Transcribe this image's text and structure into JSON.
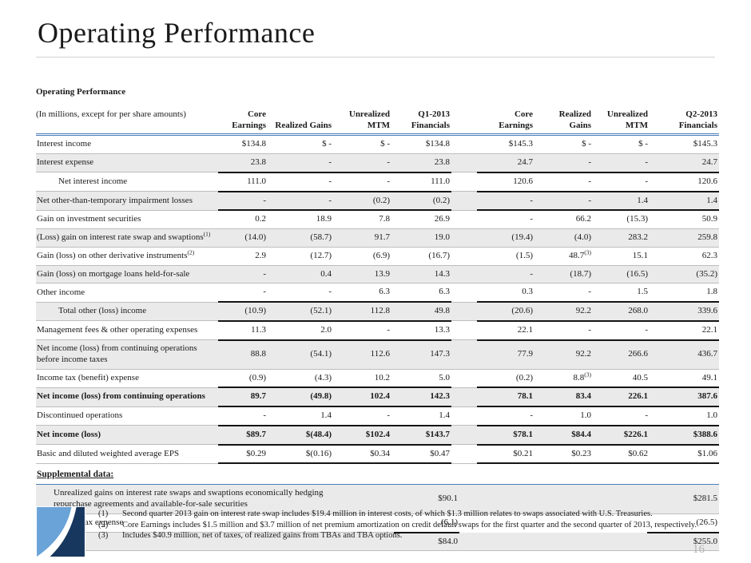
{
  "title": "Operating Performance",
  "page_number": "16",
  "colors": {
    "header_rule_blue": "#4a7ebb",
    "row_shade_gray": "#eaeaea",
    "thin_line_gray": "#bdbdbd",
    "subtotal_line_black": "#141414",
    "page_number_gray": "#b2b2b2",
    "logo_light_blue": "#6aa3d8",
    "logo_dark_blue": "#17375e"
  },
  "table": {
    "header": {
      "label_line1": "Operating Performance",
      "label_line2": "(In millions, except for per share amounts)",
      "columns": [
        "Core\nEarnings",
        "Realized Gains",
        "Unrealized\nMTM",
        "Q1-2013\nFinancials",
        "Core\nEarnings",
        "Realized\nGains",
        "Unrealized\nMTM",
        "Q2-2013\nFinancials"
      ]
    },
    "rows": [
      {
        "label": "Interest income",
        "values": [
          "$134.8",
          "$ -",
          "$ -",
          "$134.8",
          "$145.3",
          "$ -",
          "$ -",
          "$145.3"
        ],
        "shade": false
      },
      {
        "label": "Interest expense",
        "values": [
          "23.8",
          "-",
          "-",
          "23.8",
          "24.7",
          "-",
          "-",
          "24.7"
        ],
        "shade": true,
        "black_bottom": true
      },
      {
        "label": "Net interest income",
        "indent": true,
        "values": [
          "111.0",
          "-",
          "-",
          "111.0",
          "120.6",
          "-",
          "-",
          "120.6"
        ],
        "shade": false,
        "black_bottom": true
      },
      {
        "label": "Net other-than-temporary impairment losses",
        "values": [
          "-",
          "-",
          "(0.2)",
          "(0.2)",
          "-",
          "-",
          "1.4",
          "1.4"
        ],
        "shade": true,
        "black_bottom": true
      },
      {
        "label": "Gain on investment securities",
        "values": [
          "0.2",
          "18.9",
          "7.8",
          "26.9",
          "-",
          "66.2",
          "(15.3)",
          "50.9"
        ],
        "shade": false
      },
      {
        "label": "(Loss) gain on interest rate swap and swaptions(1)",
        "values": [
          "(14.0)",
          "(58.7)",
          "91.7",
          "19.0",
          "(19.4)",
          "(4.0)",
          "283.2",
          "259.8"
        ],
        "shade": true
      },
      {
        "label": "Gain (loss) on other derivative instruments(2)",
        "values": [
          "2.9",
          "(12.7)",
          "(6.9)",
          "(16.7)",
          "(1.5)",
          "48.7(3)",
          "15.1",
          "62.3"
        ],
        "shade": false
      },
      {
        "label": "Gain (loss) on mortgage loans held-for-sale",
        "values": [
          "-",
          "0.4",
          "13.9",
          "14.3",
          "-",
          "(18.7)",
          "(16.5)",
          "(35.2)"
        ],
        "shade": true
      },
      {
        "label": "Other income",
        "values": [
          "-",
          "-",
          "6.3",
          "6.3",
          "0.3",
          "-",
          "1.5",
          "1.8"
        ],
        "shade": false,
        "black_bottom": true
      },
      {
        "label": "Total other (loss) income",
        "indent": true,
        "values": [
          "(10.9)",
          "(52.1)",
          "112.8",
          "49.8",
          "(20.6)",
          "92.2",
          "268.0",
          "339.6"
        ],
        "shade": true,
        "black_bottom": true
      },
      {
        "label": "Management fees & other operating expenses",
        "values": [
          "11.3",
          "2.0",
          "-",
          "13.3",
          "22.1",
          "-",
          "-",
          "22.1"
        ],
        "shade": false,
        "black_bottom": true
      },
      {
        "label": "Net income (loss) from continuing operations before income taxes",
        "values": [
          "88.8",
          "(54.1)",
          "112.6",
          "147.3",
          "77.9",
          "92.2",
          "266.6",
          "436.7"
        ],
        "shade": true
      },
      {
        "label": "Income tax (benefit) expense",
        "values": [
          "(0.9)",
          "(4.3)",
          "10.2",
          "5.0",
          "(0.2)",
          "8.8(3)",
          "40.5",
          "49.1"
        ],
        "shade": false,
        "black_bottom": true
      },
      {
        "label": "Net income (loss) from continuing operations",
        "bold": true,
        "values": [
          "89.7",
          "(49.8)",
          "102.4",
          "142.3",
          "78.1",
          "83.4",
          "226.1",
          "387.6"
        ],
        "shade": true,
        "black_bottom": true
      },
      {
        "label": "Discontinued operations",
        "values": [
          "-",
          "1.4",
          "-",
          "1.4",
          "-",
          "1.0",
          "-",
          "1.0"
        ],
        "shade": false,
        "black_bottom": true
      },
      {
        "label": "Net income (loss)",
        "bold": true,
        "values": [
          "$89.7",
          "$(48.4)",
          "$102.4",
          "$143.7",
          "$78.1",
          "$84.4",
          "$226.1",
          "$388.6"
        ],
        "shade": true,
        "black_bottom": true
      },
      {
        "label": "Basic and diluted weighted average EPS",
        "values": [
          "$0.29",
          "$(0.16)",
          "$0.34",
          "$0.47",
          "$0.21",
          "$0.23",
          "$0.62",
          "$1.06"
        ],
        "shade": false,
        "black_bottom": true
      }
    ]
  },
  "supplemental": {
    "heading": "Supplemental data:",
    "rows": [
      {
        "label": "Unrealized gains on interest rate swaps and swaptions economically hedging\nrepurchase agreements and available-for-sale securities",
        "q1": "$90.1",
        "q2": "$281.5",
        "shade": true
      },
      {
        "label": "Income tax expense",
        "q1": "(6.1)",
        "q2": "(26.5)",
        "shade": false,
        "black_bottom": true
      },
      {
        "label": "Total",
        "q1": "$84.0",
        "q2": "$255.0",
        "shade": true
      }
    ]
  },
  "footnotes": [
    {
      "num": "(1)",
      "text": "Second quarter 2013 gain on interest rate swap includes $19.4 million in interest costs, of which $1.3 million relates to swaps associated with U.S. Treasuries."
    },
    {
      "num": "(2)",
      "text": "Core Earnings includes $1.5 million and $3.7 million of net premium amortization on credit default swaps for the first quarter and the second quarter of 2013, respectively."
    },
    {
      "num": "(3)",
      "text": "Includes $40.9 million, net of taxes, of realized gains from TBAs and TBA options."
    }
  ]
}
